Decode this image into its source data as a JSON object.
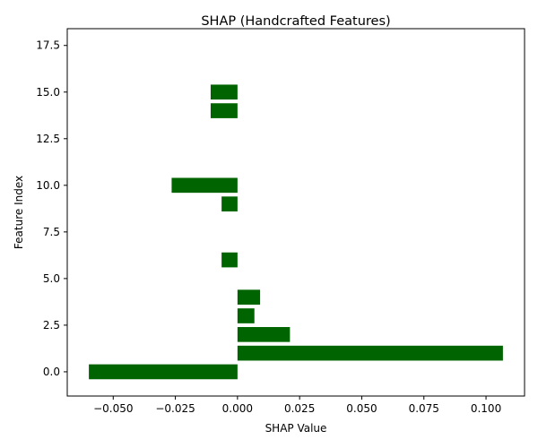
{
  "chart_data": {
    "type": "bar",
    "orientation": "horizontal",
    "title": "SHAP (Handcrafted Features)",
    "xlabel": "SHAP Value",
    "ylabel": "Feature Index",
    "bar_color": "#006400",
    "xlim": [
      -0.0685,
      0.1155
    ],
    "ylim": [
      -1.3,
      18.4
    ],
    "x_ticks": [
      -0.05,
      -0.025,
      0.0,
      0.025,
      0.05,
      0.075,
      0.1
    ],
    "x_tick_labels": [
      "−0.050",
      "−0.025",
      "0.000",
      "0.025",
      "0.050",
      "0.075",
      "0.100"
    ],
    "y_ticks": [
      0.0,
      2.5,
      5.0,
      7.5,
      10.0,
      12.5,
      15.0,
      17.5
    ],
    "y_tick_labels": [
      "0.0",
      "2.5",
      "5.0",
      "7.5",
      "10.0",
      "12.5",
      "15.0",
      "17.5"
    ],
    "grid": false,
    "bars": [
      {
        "feature": 0,
        "value": -0.0598
      },
      {
        "feature": 1,
        "value": 0.1068
      },
      {
        "feature": 2,
        "value": 0.0211
      },
      {
        "feature": 3,
        "value": 0.0068
      },
      {
        "feature": 4,
        "value": 0.0091
      },
      {
        "feature": 6,
        "value": -0.0064
      },
      {
        "feature": 9,
        "value": -0.0064
      },
      {
        "feature": 10,
        "value": -0.0265
      },
      {
        "feature": 14,
        "value": -0.0108
      },
      {
        "feature": 15,
        "value": -0.0108
      }
    ]
  }
}
